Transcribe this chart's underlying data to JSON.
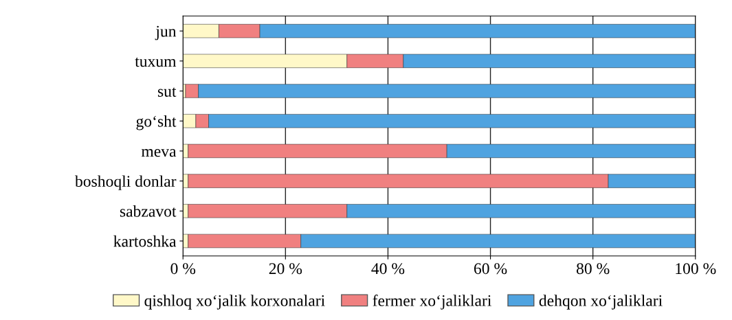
{
  "chart_data": {
    "type": "bar",
    "orientation": "horizontal",
    "stacked": true,
    "categories": [
      "jun",
      "tuxum",
      "sut",
      "go‘sht",
      "meva",
      "boshoqli donlar",
      "sabzavot",
      "kartoshka"
    ],
    "series": [
      {
        "name": "qishloq xo‘jalik korxonalari",
        "color": "#fff8c8",
        "values": [
          7,
          32,
          0.5,
          2.5,
          1,
          1,
          1,
          1
        ]
      },
      {
        "name": "fermer xo‘jaliklari",
        "color": "#f08080",
        "values": [
          8,
          11,
          2.5,
          2.5,
          50.5,
          82,
          31,
          22
        ]
      },
      {
        "name": "dehqon xo‘jaliklari",
        "color": "#4fa3e0",
        "values": [
          85,
          57,
          97,
          95,
          48.5,
          17,
          68,
          77
        ]
      }
    ],
    "xlim": [
      0,
      100
    ],
    "xticks": [
      {
        "value": 0,
        "label": "0 %"
      },
      {
        "value": 20,
        "label": "20 %"
      },
      {
        "value": 40,
        "label": "40 %"
      },
      {
        "value": 60,
        "label": "60 %"
      },
      {
        "value": 80,
        "label": "80 %"
      },
      {
        "value": 100,
        "label": "100 %"
      }
    ],
    "grid": "x",
    "legend": "bottom"
  }
}
